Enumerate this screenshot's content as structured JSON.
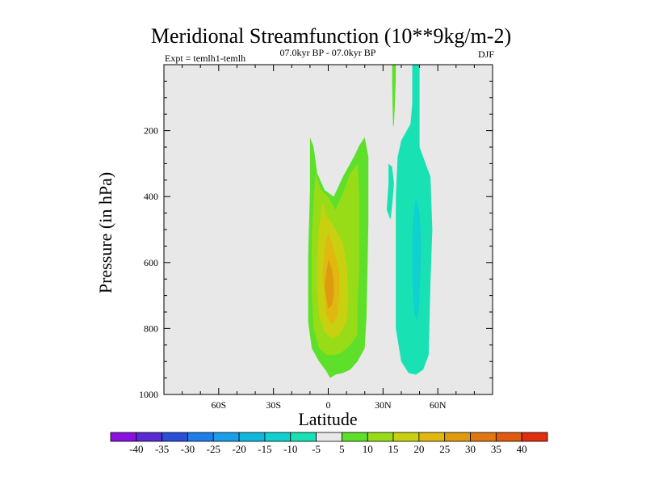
{
  "chart_data": {
    "type": "contour",
    "title": "Meridional Streamfunction (10**9kg/m-2)",
    "subtitle_left": "Expt = temlh1-temlh",
    "subtitle_center": "07.0kyr BP - 07.0kyr BP",
    "subtitle_right": "DJF",
    "xlabel": "Latitude",
    "ylabel": "Pressure (in hPa)",
    "xlim": [
      -90,
      90
    ],
    "ylim": [
      1000,
      0
    ],
    "xticks": [
      {
        "value": -60,
        "label": "60S"
      },
      {
        "value": -30,
        "label": "30S"
      },
      {
        "value": 0,
        "label": "0"
      },
      {
        "value": 30,
        "label": "30N"
      },
      {
        "value": 60,
        "label": "60N"
      }
    ],
    "yticks": [
      {
        "value": 200,
        "label": "200"
      },
      {
        "value": 400,
        "label": "400"
      },
      {
        "value": 600,
        "label": "600"
      },
      {
        "value": 800,
        "label": "800"
      },
      {
        "value": 1000,
        "label": "1000"
      }
    ],
    "background_color": "#e8e8e8",
    "contour_levels": [
      {
        "label": "-40",
        "color": "#8a12e0"
      },
      {
        "label": "-35",
        "color": "#5a2ad2"
      },
      {
        "label": "-30",
        "color": "#2a4ed6"
      },
      {
        "label": "-25",
        "color": "#1e7ee8"
      },
      {
        "label": "-20",
        "color": "#1a9ee8"
      },
      {
        "label": "-15",
        "color": "#12b8dc"
      },
      {
        "label": "-10",
        "color": "#10d0d0"
      },
      {
        "label": "-5",
        "color": "#18e2b4"
      },
      {
        "label": "5",
        "color": "#e8e8e8"
      },
      {
        "label": "10",
        "color": "#5ee02a"
      },
      {
        "label": "15",
        "color": "#98dc18"
      },
      {
        "label": "20",
        "color": "#c8d010"
      },
      {
        "label": "25",
        "color": "#e0b810"
      },
      {
        "label": "30",
        "color": "#e09a10"
      },
      {
        "label": "35",
        "color": "#e07812"
      },
      {
        "label": "40",
        "color": "#e05a10"
      },
      {
        "label": "",
        "color": "#e02e10"
      }
    ],
    "regions": [
      {
        "name": "positive-5",
        "color": "#5ee02a",
        "points": [
          [
            -10,
            220
          ],
          [
            -8,
            250
          ],
          [
            -6,
            330
          ],
          [
            -2,
            380
          ],
          [
            3,
            400
          ],
          [
            8,
            340
          ],
          [
            12,
            300
          ],
          [
            14,
            280
          ],
          [
            17,
            245
          ],
          [
            20,
            220
          ],
          [
            22,
            280
          ],
          [
            22,
            480
          ],
          [
            21,
            760
          ],
          [
            20,
            860
          ],
          [
            16,
            900
          ],
          [
            12,
            925
          ],
          [
            8,
            935
          ],
          [
            4,
            940
          ],
          [
            1,
            950
          ],
          [
            -1,
            930
          ],
          [
            -5,
            900
          ],
          [
            -9,
            860
          ],
          [
            -11,
            780
          ],
          [
            -11,
            580
          ],
          [
            -10,
            380
          ]
        ]
      },
      {
        "name": "positive-10",
        "color": "#98dc18",
        "points": [
          [
            -7,
            330
          ],
          [
            -4,
            380
          ],
          [
            0,
            400
          ],
          [
            4,
            440
          ],
          [
            8,
            390
          ],
          [
            12,
            330
          ],
          [
            16,
            300
          ],
          [
            17,
            400
          ],
          [
            17,
            620
          ],
          [
            16,
            720
          ],
          [
            16,
            820
          ],
          [
            12,
            850
          ],
          [
            7,
            875
          ],
          [
            3,
            880
          ],
          [
            -1,
            880
          ],
          [
            -5,
            860
          ],
          [
            -8,
            800
          ],
          [
            -9,
            680
          ],
          [
            -9,
            520
          ],
          [
            -8,
            420
          ]
        ]
      },
      {
        "name": "positive-15",
        "color": "#c8d010",
        "points": [
          [
            -3,
            420
          ],
          [
            -1,
            460
          ],
          [
            2,
            480
          ],
          [
            5,
            510
          ],
          [
            8,
            540
          ],
          [
            10,
            600
          ],
          [
            11,
            700
          ],
          [
            10,
            780
          ],
          [
            6,
            820
          ],
          [
            2,
            830
          ],
          [
            -2,
            810
          ],
          [
            -5,
            760
          ],
          [
            -6,
            680
          ],
          [
            -6,
            580
          ],
          [
            -5,
            490
          ]
        ]
      },
      {
        "name": "positive-20",
        "color": "#e0b810",
        "points": [
          [
            0,
            510
          ],
          [
            2,
            540
          ],
          [
            4,
            580
          ],
          [
            6,
            630
          ],
          [
            6,
            700
          ],
          [
            5,
            760
          ],
          [
            2,
            790
          ],
          [
            -1,
            760
          ],
          [
            -2,
            700
          ],
          [
            -3,
            630
          ],
          [
            -2,
            570
          ],
          [
            -1,
            530
          ]
        ]
      },
      {
        "name": "positive-25",
        "color": "#e09a10",
        "points": [
          [
            0,
            590
          ],
          [
            2,
            620
          ],
          [
            3,
            660
          ],
          [
            3,
            700
          ],
          [
            2,
            730
          ],
          [
            0,
            740
          ],
          [
            -1,
            710
          ],
          [
            -2,
            670
          ],
          [
            -1,
            630
          ]
        ]
      },
      {
        "name": "negative-5-plume",
        "color": "#18e2b4",
        "points": [
          [
            46,
            0
          ],
          [
            50,
            0
          ],
          [
            50,
            250
          ],
          [
            56,
            340
          ],
          [
            57,
            500
          ],
          [
            56,
            660
          ],
          [
            55,
            880
          ],
          [
            52,
            925
          ],
          [
            48,
            940
          ],
          [
            44,
            935
          ],
          [
            40,
            900
          ],
          [
            37,
            800
          ],
          [
            37,
            600
          ],
          [
            37,
            400
          ],
          [
            38,
            280
          ],
          [
            40,
            230
          ],
          [
            45,
            180
          ],
          [
            46,
            120
          ]
        ]
      },
      {
        "name": "negative-5-patch",
        "color": "#18e2b4",
        "points": [
          [
            33,
            300
          ],
          [
            35,
            310
          ],
          [
            36,
            360
          ],
          [
            35,
            430
          ],
          [
            34,
            470
          ],
          [
            32,
            440
          ],
          [
            33,
            360
          ]
        ]
      },
      {
        "name": "negative-10-core",
        "color": "#10d0d0",
        "points": [
          [
            48,
            400
          ],
          [
            50,
            450
          ],
          [
            51,
            550
          ],
          [
            50,
            700
          ],
          [
            49,
            780
          ],
          [
            47,
            750
          ],
          [
            46,
            650
          ],
          [
            46,
            520
          ],
          [
            47,
            440
          ]
        ]
      },
      {
        "name": "positive-5-strip",
        "color": "#5ee02a",
        "points": [
          [
            35,
            0
          ],
          [
            37,
            0
          ],
          [
            37,
            40
          ],
          [
            36.5,
            120
          ],
          [
            36,
            180
          ],
          [
            35.5,
            190
          ],
          [
            35.2,
            120
          ],
          [
            35,
            40
          ]
        ]
      }
    ]
  }
}
